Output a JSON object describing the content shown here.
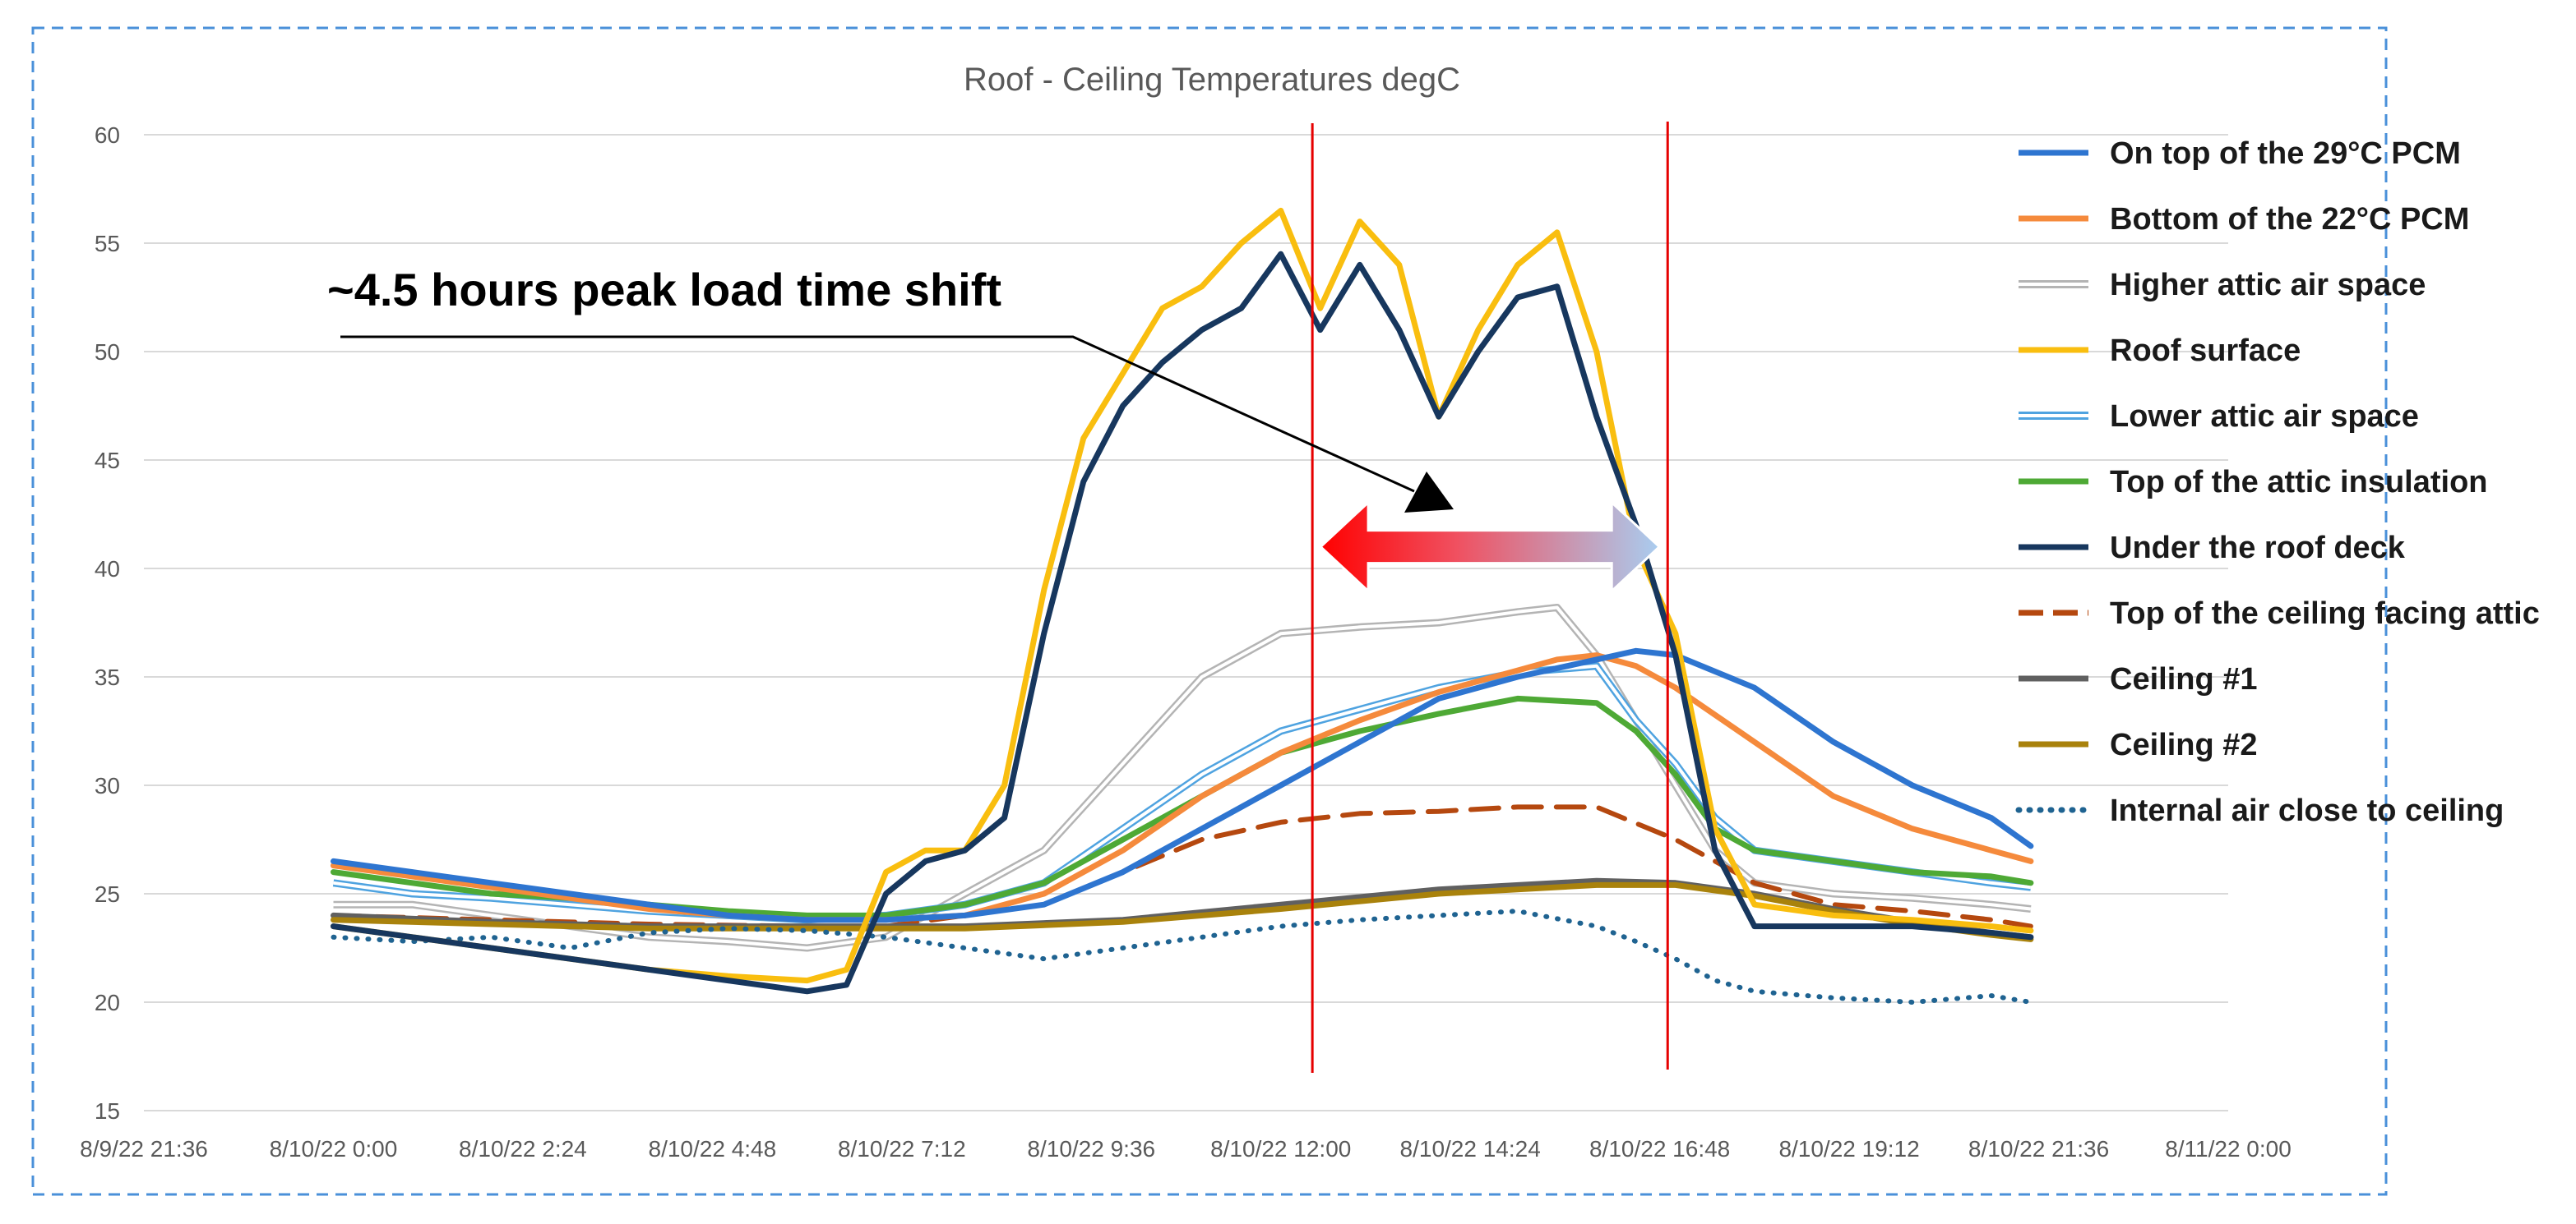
{
  "chart_data": {
    "type": "line",
    "title": "Roof - Ceiling Temperatures degC",
    "xlabel": "",
    "ylabel": "",
    "ylim": [
      15,
      60
    ],
    "yticks": [
      "15",
      "20",
      "25",
      "30",
      "35",
      "40",
      "45",
      "50",
      "55",
      "60"
    ],
    "x_hours_range": [
      -2.4,
      24
    ],
    "xticks": [
      "8/9/22 21:36",
      "8/10/22 0:00",
      "8/10/22 2:24",
      "8/10/22 4:48",
      "8/10/22 7:12",
      "8/10/22 9:36",
      "8/10/22 12:00",
      "8/10/22 14:24",
      "8/10/22 16:48",
      "8/10/22 19:12",
      "8/10/22 21:36",
      "8/11/22 0:00"
    ],
    "grid": true,
    "legend_position": "right",
    "annotation": {
      "text": "~4.5 hours peak load time shift",
      "shift_start_hour": 12.4,
      "shift_end_hour": 16.9
    },
    "series": [
      {
        "name": "On top of the 29°C PCM",
        "color": "#2E75D0",
        "style": "solid",
        "x": [
          0,
          1,
          2,
          3,
          4,
          5,
          6,
          7,
          8,
          9,
          10,
          11,
          12,
          13,
          14,
          15,
          16,
          16.5,
          17,
          18,
          19,
          20,
          21,
          21.5
        ],
        "y": [
          26.5,
          26,
          25.5,
          25,
          24.5,
          24,
          23.8,
          23.8,
          24,
          24.5,
          26,
          28,
          30,
          32,
          34,
          35,
          35.8,
          36.2,
          36,
          34.5,
          32,
          30,
          28.5,
          27.2
        ]
      },
      {
        "name": "Bottom of the 22°C PCM",
        "color": "#F58A3C",
        "style": "solid",
        "x": [
          0,
          1,
          2,
          3,
          4,
          5,
          6,
          7,
          8,
          9,
          10,
          11,
          12,
          13,
          14,
          15,
          15.5,
          16,
          16.5,
          17,
          18,
          19,
          20,
          21,
          21.5
        ],
        "y": [
          26.3,
          25.8,
          25.3,
          24.8,
          24.3,
          24,
          23.8,
          23.8,
          24,
          25,
          27,
          29.5,
          31.5,
          33,
          34.3,
          35.3,
          35.8,
          36,
          35.5,
          34.5,
          32,
          29.5,
          28,
          27,
          26.5
        ]
      },
      {
        "name": "Higher attic air space",
        "color": "#B4B4B4",
        "style": "double",
        "x": [
          0,
          1,
          2,
          3,
          4,
          5,
          6,
          7,
          8,
          9,
          10,
          11,
          12,
          13,
          14,
          15,
          15.5,
          16,
          16.5,
          17,
          17.5,
          18,
          19,
          20,
          21,
          21.5
        ],
        "y": [
          24.5,
          24.5,
          24,
          23.5,
          23,
          22.8,
          22.5,
          23,
          25,
          27,
          31,
          35,
          37,
          37.3,
          37.5,
          38,
          38.2,
          36,
          33,
          30,
          27,
          25.5,
          25,
          24.8,
          24.5,
          24.3
        ]
      },
      {
        "name": "Roof surface",
        "color": "#F9BE0F",
        "style": "solid",
        "x": [
          0,
          1,
          2,
          3,
          4,
          5,
          6,
          6.5,
          7,
          7.5,
          8,
          8.5,
          9,
          9.5,
          10,
          10.5,
          11,
          11.5,
          12,
          12.5,
          13,
          13.5,
          14,
          14.5,
          15,
          15.5,
          16,
          16.5,
          17,
          17.5,
          18,
          19,
          20,
          21,
          21.5
        ],
        "y": [
          23.5,
          23,
          22.5,
          22,
          21.5,
          21.2,
          21,
          21.5,
          26,
          27,
          27,
          30,
          39,
          46,
          49,
          52,
          53,
          55,
          56.5,
          52,
          56,
          54,
          47,
          51,
          54,
          55.5,
          50,
          41,
          37,
          28,
          24.5,
          24,
          23.8,
          23.5,
          23.3
        ]
      },
      {
        "name": "Lower attic air space",
        "color": "#4FA3E0",
        "style": "double",
        "x": [
          0,
          1,
          2,
          3,
          4,
          5,
          6,
          7,
          8,
          9,
          10,
          11,
          12,
          13,
          14,
          15,
          16,
          16.5,
          17,
          17.5,
          18,
          19,
          20,
          21,
          21.5
        ],
        "y": [
          25.5,
          25,
          24.8,
          24.5,
          24.2,
          24,
          23.8,
          24,
          24.5,
          25.5,
          28,
          30.5,
          32.5,
          33.5,
          34.5,
          35.2,
          35.5,
          33,
          31,
          28.5,
          27,
          26.5,
          26,
          25.5,
          25.3
        ]
      },
      {
        "name": "Top of the attic insulation",
        "color": "#4EA935",
        "style": "solid",
        "x": [
          0,
          1,
          2,
          3,
          4,
          5,
          6,
          7,
          8,
          9,
          10,
          11,
          12,
          13,
          14,
          15,
          16,
          16.5,
          17,
          17.5,
          18,
          19,
          20,
          21,
          21.5
        ],
        "y": [
          26,
          25.5,
          25,
          24.8,
          24.5,
          24.2,
          24,
          24,
          24.5,
          25.5,
          27.5,
          29.5,
          31.5,
          32.5,
          33.3,
          34,
          33.8,
          32.5,
          30.5,
          28,
          27,
          26.5,
          26,
          25.8,
          25.5
        ]
      },
      {
        "name": "Under the roof deck",
        "color": "#17375E",
        "style": "solid",
        "x": [
          0,
          1,
          2,
          3,
          4,
          5,
          6,
          6.5,
          7,
          7.5,
          8,
          8.5,
          9,
          9.5,
          10,
          10.5,
          11,
          11.5,
          12,
          12.5,
          13,
          13.5,
          14,
          14.5,
          15,
          15.5,
          16,
          16.5,
          17,
          17.5,
          18,
          19,
          20,
          21,
          21.5
        ],
        "y": [
          23.5,
          23,
          22.5,
          22,
          21.5,
          21,
          20.5,
          20.8,
          25,
          26.5,
          27,
          28.5,
          37,
          44,
          47.5,
          49.5,
          51,
          52,
          54.5,
          51,
          54,
          51,
          47,
          50,
          52.5,
          53,
          47,
          42,
          36,
          27,
          23.5,
          23.5,
          23.5,
          23.2,
          23
        ]
      },
      {
        "name": "Top of the ceiling facing attic",
        "color": "#B5480F",
        "style": "dashed",
        "x": [
          0,
          2,
          4,
          6,
          7,
          8,
          9,
          10,
          11,
          12,
          13,
          14,
          15,
          16,
          17,
          18,
          19,
          20,
          21,
          21.5
        ],
        "y": [
          24,
          23.8,
          23.6,
          23.5,
          23.5,
          24,
          24.5,
          26,
          27.5,
          28.3,
          28.7,
          28.8,
          29,
          29,
          27.5,
          25.5,
          24.5,
          24.2,
          23.8,
          23.5
        ]
      },
      {
        "name": "Ceiling #1",
        "color": "#606060",
        "style": "solid",
        "x": [
          0,
          2,
          4,
          6,
          8,
          10,
          12,
          14,
          16,
          17,
          18,
          19,
          20,
          21,
          21.5
        ],
        "y": [
          24,
          23.7,
          23.5,
          23.5,
          23.5,
          23.8,
          24.5,
          25.2,
          25.6,
          25.5,
          25,
          24.3,
          23.7,
          23.2,
          23
        ]
      },
      {
        "name": "Ceiling #2",
        "color": "#A9820C",
        "style": "solid",
        "x": [
          0,
          2,
          4,
          6,
          8,
          10,
          12,
          14,
          16,
          17,
          18,
          19,
          20,
          21,
          21.5
        ],
        "y": [
          23.8,
          23.6,
          23.4,
          23.4,
          23.4,
          23.7,
          24.3,
          25,
          25.4,
          25.4,
          24.9,
          24.2,
          23.6,
          23.1,
          22.9
        ]
      },
      {
        "name": "Internal air close to ceiling",
        "color": "#1F6391",
        "style": "dotted",
        "x": [
          0,
          1,
          2,
          3,
          4,
          5,
          6,
          7,
          8,
          9,
          10,
          11,
          12,
          13,
          14,
          15,
          16,
          16.5,
          17,
          17.5,
          18,
          19,
          20,
          21,
          21.5
        ],
        "y": [
          23,
          22.8,
          23,
          22.5,
          23.2,
          23.4,
          23.3,
          23,
          22.5,
          22,
          22.5,
          23,
          23.5,
          23.8,
          24,
          24.2,
          23.5,
          22.8,
          22,
          21,
          20.5,
          20.2,
          20,
          20.3,
          20
        ]
      }
    ]
  }
}
